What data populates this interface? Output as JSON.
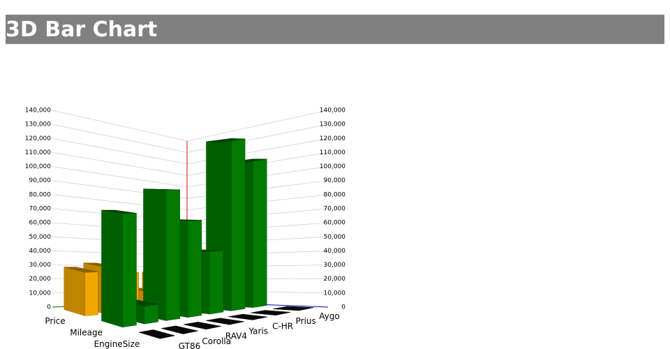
{
  "header": {
    "title": "3D Bar Chart"
  },
  "chart_data": {
    "type": "bar3d",
    "categories": [
      "GT86",
      "Corolla",
      "RAV4",
      "Yaris",
      "C-HR",
      "Prius",
      "Aygo"
    ],
    "series": [
      {
        "name": "Price",
        "color": "#ffb000",
        "values": [
          30000,
          33000,
          28000,
          14000,
          26000,
          25000,
          12000
        ]
      },
      {
        "name": "Mileage",
        "color": "#008000",
        "values": [
          75000,
          12000,
          90000,
          68000,
          45000,
          127000,
          112000
        ]
      },
      {
        "name": "EngineSize",
        "color": "#111111",
        "values": [
          2,
          1.8,
          2.5,
          1.5,
          1.8,
          1.8,
          1
        ]
      }
    ],
    "ylim": [
      0,
      140000
    ],
    "yticks": [
      0,
      {
        "value": 10000,
        "label": "10,000"
      },
      {
        "value": 20000,
        "label": "20,000"
      },
      {
        "value": 30000,
        "label": "30,000"
      },
      {
        "value": 40000,
        "label": "40,000"
      },
      {
        "value": 50000,
        "label": "50,000"
      },
      {
        "value": 60000,
        "label": "60,000"
      },
      {
        "value": 70000,
        "label": "70,000"
      },
      {
        "value": 80000,
        "label": "80,000"
      },
      {
        "value": 90000,
        "label": "90,000"
      },
      {
        "value": 100000,
        "label": "100,000"
      },
      {
        "value": 110000,
        "label": "110,000"
      },
      {
        "value": 120000,
        "label": "120,000"
      },
      {
        "value": 130000,
        "label": "130,000"
      },
      {
        "value": 140000,
        "label": "140,000"
      }
    ],
    "grid": true
  }
}
